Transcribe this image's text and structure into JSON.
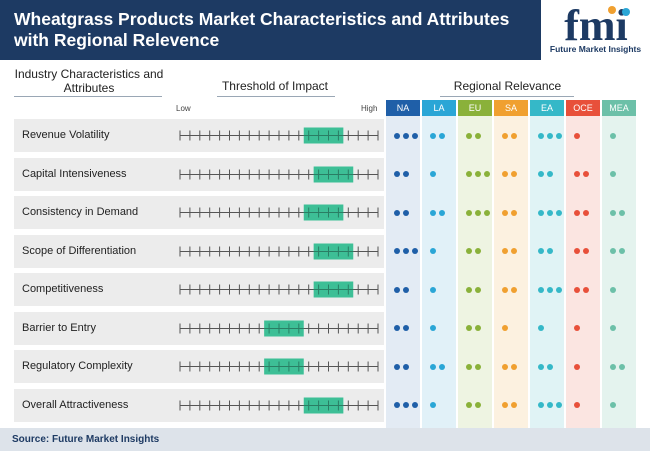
{
  "header": {
    "title": "Wheatgrass Products Market Characteristics and Attributes with Regional Relevence"
  },
  "logo": {
    "letters": "fmi",
    "subtitle": "Future Market Insights"
  },
  "columns": {
    "characteristics": "Industry Characteristics and Attributes",
    "threshold": "Threshold of Impact",
    "regional": "Regional Relevance"
  },
  "scale": {
    "low": "Low",
    "high": "High",
    "ticks": 20
  },
  "bar_color": "#3dbf96",
  "rows": [
    {
      "label": "Revenue Volatility",
      "range": [
        12.5,
        16.5
      ]
    },
    {
      "label": "Capital Intensiveness",
      "range": [
        13.5,
        17.5
      ]
    },
    {
      "label": "Consistency in Demand",
      "range": [
        12.5,
        16.5
      ]
    },
    {
      "label": "Scope of Differentiation",
      "range": [
        13.5,
        17.5
      ]
    },
    {
      "label": "Competitiveness",
      "range": [
        13.5,
        17.5
      ]
    },
    {
      "label": "Barrier to Entry",
      "range": [
        8.5,
        12.5
      ]
    },
    {
      "label": "Regulatory Complexity",
      "range": [
        8.5,
        12.5
      ]
    },
    {
      "label": "Overall Attractiveness",
      "range": [
        12.5,
        16.5
      ]
    }
  ],
  "regions": [
    {
      "code": "NA",
      "color": "#1f5fa8",
      "cell_bg": "#e3ebf4",
      "dots": [
        3,
        2,
        2,
        3,
        2,
        2,
        2,
        3
      ]
    },
    {
      "code": "LA",
      "color": "#2aa6d6",
      "cell_bg": "#e1f1f8",
      "dots": [
        2,
        1,
        2,
        1,
        1,
        1,
        2,
        1
      ]
    },
    {
      "code": "EU",
      "color": "#8ab13a",
      "cell_bg": "#eef4e2",
      "dots": [
        2,
        3,
        3,
        2,
        2,
        2,
        2,
        2
      ]
    },
    {
      "code": "SA",
      "color": "#f0a030",
      "cell_bg": "#fcf1e0",
      "dots": [
        2,
        2,
        2,
        2,
        2,
        1,
        2,
        2
      ]
    },
    {
      "code": "EA",
      "color": "#35b8c8",
      "cell_bg": "#e0f3f5",
      "dots": [
        3,
        2,
        3,
        2,
        3,
        1,
        2,
        3
      ]
    },
    {
      "code": "OCE",
      "color": "#e8503a",
      "cell_bg": "#fbe5e1",
      "dots": [
        1,
        2,
        2,
        2,
        2,
        1,
        1,
        1
      ]
    },
    {
      "code": "MEA",
      "color": "#6cc0a8",
      "cell_bg": "#e4f3ee",
      "dots": [
        1,
        1,
        2,
        2,
        1,
        1,
        2,
        1
      ]
    }
  ],
  "footer": {
    "source": "Source: Future Market Insights"
  }
}
